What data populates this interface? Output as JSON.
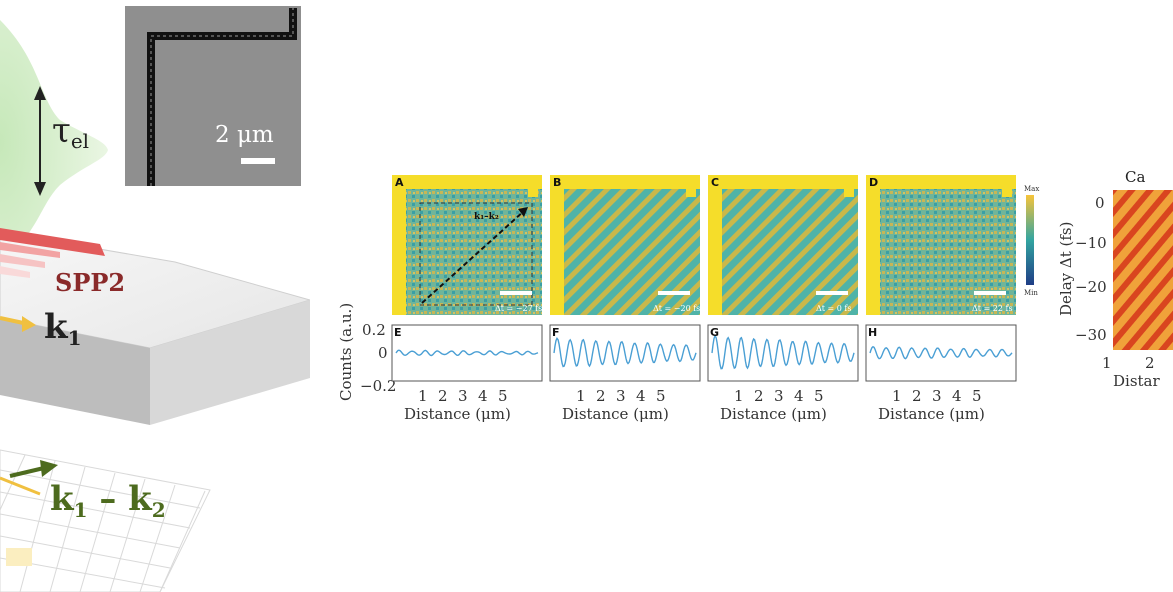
{
  "schematic": {
    "tau_label": "τ",
    "tau_subscript": "el",
    "spp_label": "SPP2",
    "k1_label": "k",
    "k1_sub": "1",
    "diff_k1": "k",
    "diff_sub1": "1",
    "diff_minus": " – ",
    "diff_k2": "k",
    "diff_sub2": "2"
  },
  "sem": {
    "scale_label": "2 μm"
  },
  "panels": {
    "top": [
      {
        "letter": "A",
        "delay": "Δt = −27 fs",
        "vector": "k₁–k₂"
      },
      {
        "letter": "B",
        "delay": "Δt = −20 fs"
      },
      {
        "letter": "C",
        "delay": "Δt = 0 fs"
      },
      {
        "letter": "D",
        "delay": "Δt = 22 fs"
      }
    ],
    "bottom": [
      {
        "letter": "E",
        "amplitude": 0.02
      },
      {
        "letter": "F",
        "amplitude": 0.12
      },
      {
        "letter": "G",
        "amplitude": 0.14
      },
      {
        "letter": "H",
        "amplitude": 0.05
      }
    ],
    "colorbar_max": "Max",
    "colorbar_min": "Min",
    "y_axis_label": "Counts (a.u.)",
    "y_ticks": [
      "0.2",
      "0",
      "−0.2"
    ],
    "x_ticks": [
      "1",
      "2",
      "3",
      "4",
      "5"
    ],
    "x_axis_label": "Distance (μm)"
  },
  "right_panel": {
    "title": "Ca",
    "y_axis_label": "Delay Δt (fs)",
    "y_ticks": [
      "0",
      "−10",
      "−20",
      "−30"
    ],
    "x_ticks": [
      "1",
      "2"
    ],
    "x_axis_label": "Distar"
  },
  "chart_data": {
    "type": "line",
    "x": [
      1,
      2,
      3,
      4,
      5
    ],
    "xlabel": "Distance (μm)",
    "ylabel": "Counts (a.u.)",
    "ylim": [
      -0.2,
      0.2
    ],
    "series": [
      {
        "panel": "E",
        "delay_fs": -27,
        "amplitude": 0.02
      },
      {
        "panel": "F",
        "delay_fs": -20,
        "amplitude": 0.12
      },
      {
        "panel": "G",
        "delay_fs": 0,
        "amplitude": 0.14
      },
      {
        "panel": "H",
        "delay_fs": 22,
        "amplitude": 0.05
      }
    ]
  },
  "colors": {
    "teal": "#3aa7a3",
    "yellow": "#f5dd2a",
    "orange": "#f0a23a",
    "line_blue": "#4a9fd4",
    "green_arrow": "#4d6b1e",
    "spp_red": "#8a2a2a"
  }
}
